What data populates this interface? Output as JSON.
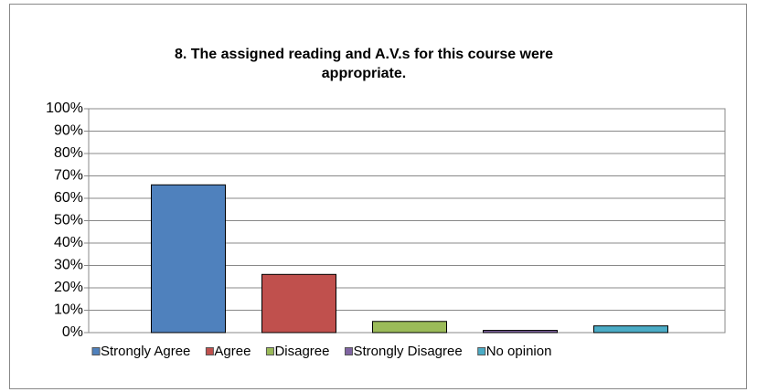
{
  "chart_data": {
    "type": "bar",
    "title": [
      "8. The assigned reading and A.V.s for this course were",
      "appropriate."
    ],
    "categories": [
      null
    ],
    "series": [
      {
        "name": "Strongly Agree",
        "color": "#4f81bd",
        "values": [
          66
        ]
      },
      {
        "name": "Agree",
        "color": "#c0504d",
        "values": [
          26
        ]
      },
      {
        "name": "Disagree",
        "color": "#9bbb59",
        "values": [
          5
        ]
      },
      {
        "name": "Strongly Disagree",
        "color": "#8064a2",
        "values": [
          1
        ]
      },
      {
        "name": "No opinion",
        "color": "#4bacc6",
        "values": [
          3
        ]
      }
    ],
    "ylim": [
      0,
      100
    ],
    "yticks": [
      {
        "value": 0,
        "label": "0%"
      },
      {
        "value": 10,
        "label": "10%"
      },
      {
        "value": 20,
        "label": "20%"
      },
      {
        "value": 30,
        "label": "30%"
      },
      {
        "value": 40,
        "label": "40%"
      },
      {
        "value": 50,
        "label": "50%"
      },
      {
        "value": 60,
        "label": "60%"
      },
      {
        "value": 70,
        "label": "70%"
      },
      {
        "value": 80,
        "label": "80%"
      },
      {
        "value": 90,
        "label": "90%"
      },
      {
        "value": 100,
        "label": "100%"
      }
    ],
    "grid": true,
    "legend": "bottom"
  }
}
